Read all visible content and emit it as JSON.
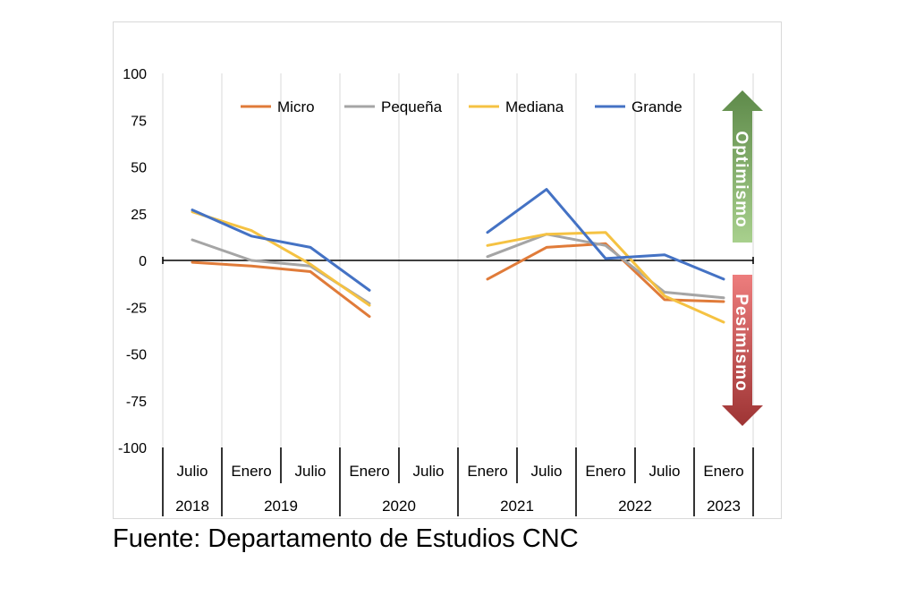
{
  "chart_data": {
    "type": "line",
    "title": "",
    "xlabel": "",
    "ylabel": "",
    "ylim": [
      -100,
      100
    ],
    "yticks": [
      100,
      75,
      50,
      25,
      0,
      -25,
      -50,
      -75,
      -100
    ],
    "grid": "vertical",
    "legend_position": "top",
    "x": [
      "Julio 2018",
      "Enero 2019",
      "Julio 2019",
      "Enero 2020",
      "Julio 2020",
      "Enero 2021",
      "Julio 2021",
      "Enero 2022",
      "Julio 2022",
      "Enero 2023"
    ],
    "period_labels": [
      "Julio",
      "Enero",
      "Julio",
      "Enero",
      "Julio",
      "Enero",
      "Julio",
      "Enero",
      "Julio",
      "Enero"
    ],
    "year_groups": [
      {
        "label": "2018",
        "span": 1
      },
      {
        "label": "2019",
        "span": 2
      },
      {
        "label": "2020",
        "span": 2
      },
      {
        "label": "2021",
        "span": 2
      },
      {
        "label": "2022",
        "span": 2
      },
      {
        "label": "2023",
        "span": 1
      }
    ],
    "series": [
      {
        "name": "Micro",
        "color": "#E07B39",
        "values": [
          -1,
          -3,
          -6,
          -30,
          null,
          -10,
          7,
          9,
          -21,
          -22
        ]
      },
      {
        "name": "Pequeña",
        "color": "#A5A5A5",
        "values": [
          11,
          0,
          -3,
          -23,
          null,
          2,
          14,
          8,
          -17,
          -20
        ]
      },
      {
        "name": "Mediana",
        "color": "#F5C242",
        "values": [
          26,
          16,
          -2,
          -24,
          null,
          8,
          14,
          15,
          -19,
          -33
        ]
      },
      {
        "name": "Grande",
        "color": "#4472C4",
        "values": [
          27,
          13,
          7,
          -16,
          null,
          15,
          38,
          1,
          3,
          -10
        ]
      }
    ],
    "annotations": {
      "optimism": "Optimismo",
      "pessimism": "Pesimismo",
      "optimism_colors": [
        "#5E8A4A",
        "#A8D08D"
      ],
      "pessimism_colors": [
        "#ED7D7D",
        "#9E3434"
      ]
    }
  },
  "source": "Fuente: Departamento de Estudios CNC"
}
